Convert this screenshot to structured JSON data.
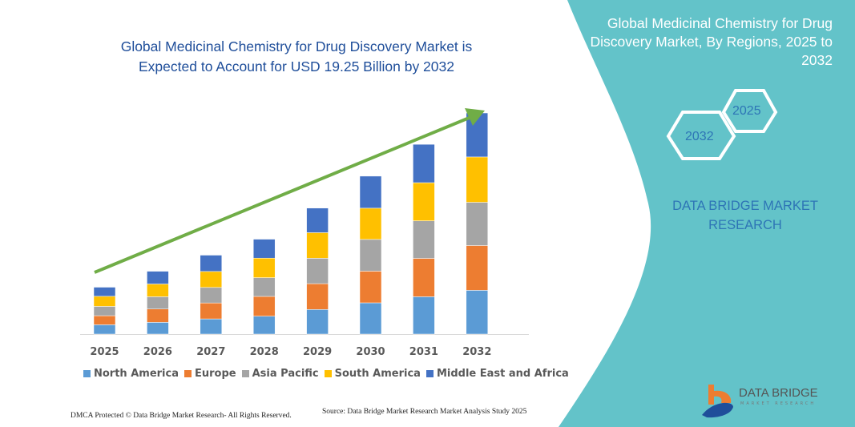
{
  "header": {
    "title": "Global Medicinal Chemistry for Drug Discovery Market is Expected to Account for USD 19.25 Billion by 2032"
  },
  "side_panel": {
    "title": "Global Medicinal Chemistry for Drug Discovery Market, By Regions, 2025 to 2032",
    "hex_labels": [
      "2025",
      "2032"
    ],
    "brand": "DATA BRIDGE MARKET RESEARCH",
    "logo_text": "DATA BRIDGE",
    "logo_subtext": "MARKET RESEARCH",
    "panel_color": "#63c3c9"
  },
  "footer": {
    "copyright": "DMCA Protected © Data Bridge Market Research- All Rights Reserved.",
    "source": "Source: Data Bridge Market Research Market Analysis Study 2025"
  },
  "chart_data": {
    "type": "bar",
    "stacked": true,
    "title": "Global Medicinal Chemistry for Drug Discovery Market is Expected to Account for USD 19.25 Billion by 2032",
    "unit": "USD Billion",
    "categories": [
      "2025",
      "2026",
      "2027",
      "2028",
      "2029",
      "2030",
      "2031",
      "2032"
    ],
    "series": [
      {
        "name": "North America",
        "color": "#5b9bd5",
        "values": [
          0.81,
          1.02,
          1.32,
          1.56,
          2.14,
          2.72,
          3.25,
          3.81
        ]
      },
      {
        "name": "Europe",
        "color": "#ed7d31",
        "values": [
          0.79,
          1.16,
          1.39,
          1.72,
          2.25,
          2.76,
          3.34,
          3.9
        ]
      },
      {
        "name": "Asia Pacific",
        "color": "#a5a5a5",
        "values": [
          0.81,
          1.07,
          1.35,
          1.63,
          2.21,
          2.76,
          3.27,
          3.76
        ]
      },
      {
        "name": "South America",
        "color": "#ffc000",
        "values": [
          0.88,
          1.11,
          1.39,
          1.7,
          2.23,
          2.72,
          3.32,
          3.95
        ]
      },
      {
        "name": "Middle East and Africa",
        "color": "#4472c4",
        "values": [
          0.79,
          1.11,
          1.42,
          1.65,
          2.14,
          2.79,
          3.34,
          3.83
        ]
      }
    ],
    "ylim": [
      0,
      19.25
    ],
    "grid": false,
    "y_axis_visible": false,
    "legend_placement": "bottom",
    "trend_arrow": {
      "color": "#70ad47"
    }
  }
}
